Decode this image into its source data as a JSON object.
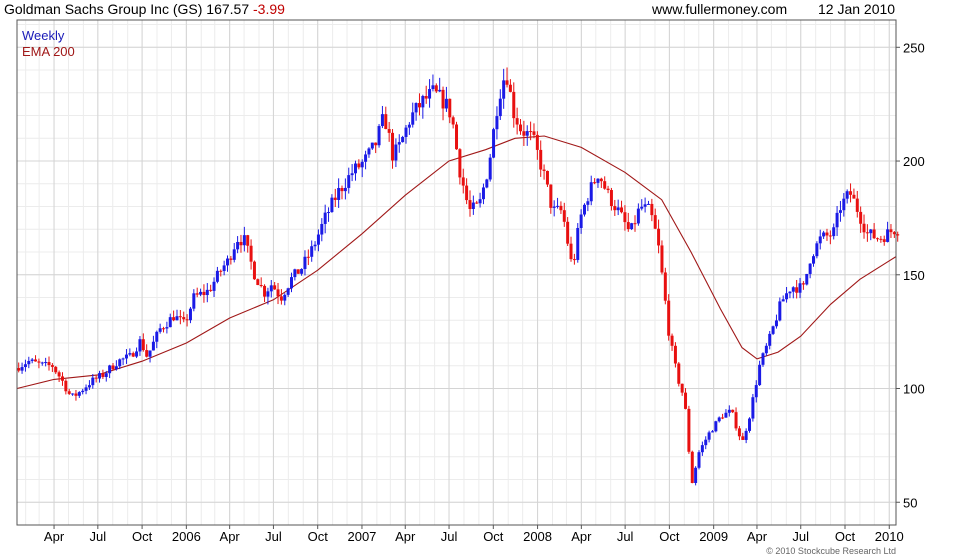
{
  "header": {
    "title": "Goldman Sachs Group Inc (GS) 167.57",
    "change": "-3.99",
    "site": "www.fullermoney.com",
    "date": "12 Jan 2010"
  },
  "copyright": "© 2010 Stockcube Research Ltd",
  "colors": {
    "up": "#1a1ae6",
    "down": "#e81010",
    "ema": "#a01818",
    "grid": "#d4d4d4",
    "legend_weekly": "#1a1ab8"
  },
  "chart_data": {
    "type": "candlestick",
    "legend": [
      "Weekly",
      "EMA 200"
    ],
    "legend_placement": "top-left",
    "grid": true,
    "x_range": [
      "2005-01-14",
      "2010-01-15"
    ],
    "ylim": [
      40,
      262
    ],
    "y_ticks": [
      50,
      100,
      150,
      200,
      250
    ],
    "x_ticks": [
      {
        "label": "Apr",
        "date": "2005-04-01"
      },
      {
        "label": "Jul",
        "date": "2005-07-01"
      },
      {
        "label": "Oct",
        "date": "2005-10-01"
      },
      {
        "label": "2006",
        "date": "2006-01-01"
      },
      {
        "label": "Apr",
        "date": "2006-04-01"
      },
      {
        "label": "Jul",
        "date": "2006-07-01"
      },
      {
        "label": "Oct",
        "date": "2006-10-01"
      },
      {
        "label": "2007",
        "date": "2007-01-01"
      },
      {
        "label": "Apr",
        "date": "2007-04-01"
      },
      {
        "label": "Jul",
        "date": "2007-07-01"
      },
      {
        "label": "Oct",
        "date": "2007-10-01"
      },
      {
        "label": "2008",
        "date": "2008-01-01"
      },
      {
        "label": "Apr",
        "date": "2008-04-01"
      },
      {
        "label": "Jul",
        "date": "2008-07-01"
      },
      {
        "label": "Oct",
        "date": "2008-10-01"
      },
      {
        "label": "2009",
        "date": "2009-01-01"
      },
      {
        "label": "Apr",
        "date": "2009-04-01"
      },
      {
        "label": "Jul",
        "date": "2009-07-01"
      },
      {
        "label": "Oct",
        "date": "2009-10-01"
      },
      {
        "label": "2010",
        "date": "2010-01-01"
      }
    ],
    "price_path": [
      [
        "2005-01-14",
        109
      ],
      [
        "2005-02-10",
        112
      ],
      [
        "2005-03-15",
        110
      ],
      [
        "2005-04-01",
        110
      ],
      [
        "2005-04-20",
        104
      ],
      [
        "2005-05-10",
        96
      ],
      [
        "2005-05-25",
        98
      ],
      [
        "2005-06-20",
        103
      ],
      [
        "2005-07-15",
        106
      ],
      [
        "2005-08-15",
        112
      ],
      [
        "2005-09-10",
        114
      ],
      [
        "2005-10-01",
        121
      ],
      [
        "2005-10-15",
        114
      ],
      [
        "2005-11-10",
        126
      ],
      [
        "2005-12-10",
        132
      ],
      [
        "2006-01-01",
        128
      ],
      [
        "2006-01-20",
        140
      ],
      [
        "2006-02-20",
        143
      ],
      [
        "2006-03-20",
        153
      ],
      [
        "2006-04-01",
        156
      ],
      [
        "2006-04-20",
        166
      ],
      [
        "2006-05-05",
        165
      ],
      [
        "2006-05-25",
        151
      ],
      [
        "2006-06-15",
        142
      ],
      [
        "2006-07-01",
        146
      ],
      [
        "2006-07-20",
        140
      ],
      [
        "2006-08-10",
        148
      ],
      [
        "2006-09-01",
        153
      ],
      [
        "2006-09-25",
        162
      ],
      [
        "2006-10-20",
        175
      ],
      [
        "2006-11-15",
        186
      ],
      [
        "2006-12-15",
        195
      ],
      [
        "2007-01-10",
        200
      ],
      [
        "2007-02-01",
        207
      ],
      [
        "2007-02-20",
        220
      ],
      [
        "2007-03-10",
        202
      ],
      [
        "2007-03-25",
        207
      ],
      [
        "2007-04-15",
        219
      ],
      [
        "2007-05-10",
        226
      ],
      [
        "2007-06-01",
        230
      ],
      [
        "2007-06-25",
        226
      ],
      [
        "2007-07-10",
        220
      ],
      [
        "2007-07-25",
        198
      ],
      [
        "2007-08-15",
        178
      ],
      [
        "2007-09-05",
        180
      ],
      [
        "2007-09-25",
        198
      ],
      [
        "2007-10-15",
        228
      ],
      [
        "2007-10-31",
        240
      ],
      [
        "2007-11-15",
        222
      ],
      [
        "2007-12-01",
        214
      ],
      [
        "2007-12-25",
        210
      ],
      [
        "2008-01-15",
        196
      ],
      [
        "2008-02-05",
        178
      ],
      [
        "2008-02-25",
        178
      ],
      [
        "2008-03-17",
        152
      ],
      [
        "2008-04-01",
        174
      ],
      [
        "2008-04-20",
        186
      ],
      [
        "2008-05-10",
        195
      ],
      [
        "2008-05-30",
        185
      ],
      [
        "2008-06-20",
        178
      ],
      [
        "2008-07-15",
        168
      ],
      [
        "2008-08-05",
        180
      ],
      [
        "2008-08-25",
        178
      ],
      [
        "2008-09-10",
        165
      ],
      [
        "2008-09-22",
        145
      ],
      [
        "2008-10-05",
        122
      ],
      [
        "2008-10-20",
        106
      ],
      [
        "2008-11-05",
        95
      ],
      [
        "2008-11-20",
        58
      ],
      [
        "2008-12-05",
        72
      ],
      [
        "2008-12-25",
        80
      ],
      [
        "2009-01-20",
        88
      ],
      [
        "2009-02-10",
        90
      ],
      [
        "2009-03-05",
        76
      ],
      [
        "2009-03-20",
        88
      ],
      [
        "2009-04-10",
        110
      ],
      [
        "2009-05-01",
        122
      ],
      [
        "2009-05-25",
        138
      ],
      [
        "2009-06-15",
        145
      ],
      [
        "2009-07-10",
        144
      ],
      [
        "2009-07-25",
        158
      ],
      [
        "2009-08-15",
        166
      ],
      [
        "2009-09-10",
        168
      ],
      [
        "2009-09-25",
        180
      ],
      [
        "2009-10-15",
        186
      ],
      [
        "2009-11-01",
        178
      ],
      [
        "2009-11-20",
        168
      ],
      [
        "2009-12-15",
        166
      ],
      [
        "2010-01-15",
        170
      ]
    ],
    "ema200": [
      [
        "2005-01-14",
        100
      ],
      [
        "2005-04-01",
        104
      ],
      [
        "2005-07-01",
        106
      ],
      [
        "2005-10-01",
        112
      ],
      [
        "2006-01-01",
        120
      ],
      [
        "2006-04-01",
        131
      ],
      [
        "2006-07-01",
        139
      ],
      [
        "2006-10-01",
        152
      ],
      [
        "2007-01-01",
        168
      ],
      [
        "2007-04-01",
        185
      ],
      [
        "2007-07-01",
        200
      ],
      [
        "2007-09-15",
        205
      ],
      [
        "2007-11-15",
        210
      ],
      [
        "2008-01-15",
        211
      ],
      [
        "2008-04-01",
        206
      ],
      [
        "2008-07-01",
        195
      ],
      [
        "2008-09-15",
        183
      ],
      [
        "2008-11-15",
        160
      ],
      [
        "2009-01-15",
        135
      ],
      [
        "2009-03-01",
        118
      ],
      [
        "2009-04-01",
        113
      ],
      [
        "2009-05-15",
        116
      ],
      [
        "2009-07-01",
        123
      ],
      [
        "2009-09-01",
        137
      ],
      [
        "2009-11-01",
        148
      ],
      [
        "2010-01-15",
        158
      ]
    ]
  }
}
